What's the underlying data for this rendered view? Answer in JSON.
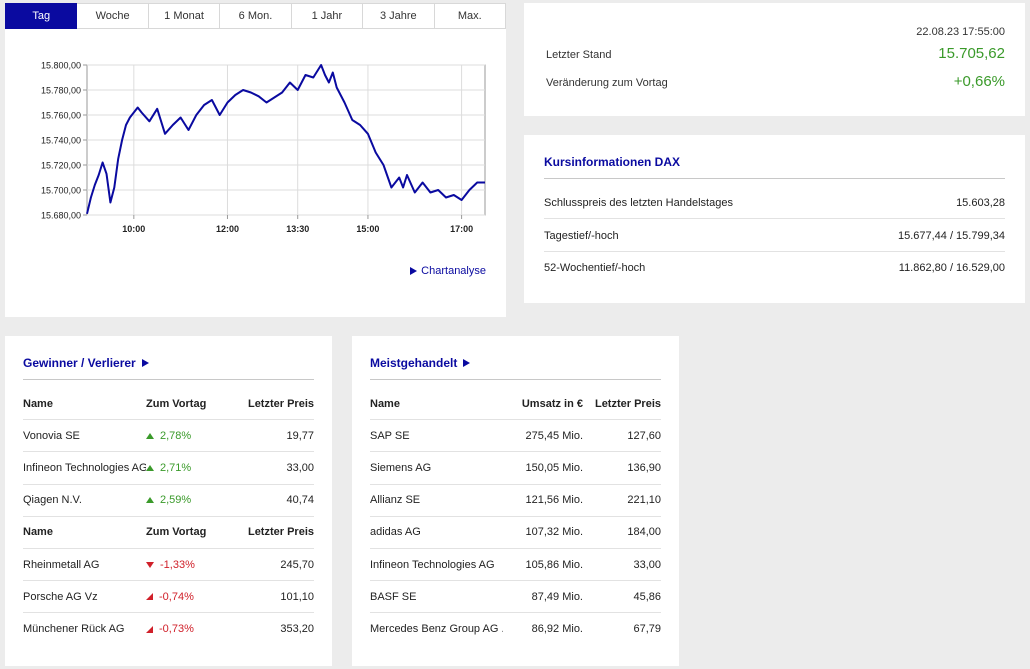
{
  "tabs": [
    "Tag",
    "Woche",
    "1 Monat",
    "6 Mon.",
    "1 Jahr",
    "3 Jahre",
    "Max."
  ],
  "active_tab": 0,
  "chart_link": "Chartanalyse",
  "chart_data": {
    "type": "line",
    "title": "",
    "xlabel": "",
    "ylabel": "",
    "x_ticks": [
      "10:00",
      "12:00",
      "13:30",
      "15:00",
      "17:00"
    ],
    "y_ticks": [
      "15.680,00",
      "15.700,00",
      "15.720,00",
      "15.740,00",
      "15.760,00",
      "15.780,00",
      "15.800,00"
    ],
    "ylim": [
      15680,
      15800
    ],
    "xlim": [
      "09:00",
      "17:30"
    ],
    "grid": true,
    "color": "#0a0aa0",
    "series": [
      {
        "x": [
          "09:00",
          "09:05",
          "09:10",
          "09:15",
          "09:20",
          "09:25",
          "09:30",
          "09:35",
          "09:40",
          "09:45",
          "09:50",
          "09:55",
          "10:00",
          "10:05",
          "10:10",
          "10:20",
          "10:30",
          "10:40",
          "10:50",
          "11:00",
          "11:10",
          "11:20",
          "11:30",
          "11:40",
          "11:50",
          "12:00",
          "12:10",
          "12:20",
          "12:30",
          "12:40",
          "12:50",
          "13:00",
          "13:10",
          "13:20",
          "13:30",
          "13:40",
          "13:50",
          "14:00",
          "14:05",
          "14:10",
          "14:15",
          "14:20",
          "14:30",
          "14:40",
          "14:50",
          "15:00",
          "15:10",
          "15:20",
          "15:30",
          "15:40",
          "15:45",
          "15:50",
          "16:00",
          "16:10",
          "16:20",
          "16:30",
          "16:40",
          "16:50",
          "17:00",
          "17:10",
          "17:20",
          "17:30"
        ],
        "y": [
          15681,
          15694,
          15704,
          15712,
          15722,
          15713,
          15690,
          15702,
          15725,
          15740,
          15752,
          15758,
          15762,
          15766,
          15762,
          15755,
          15765,
          15745,
          15752,
          15758,
          15748,
          15760,
          15768,
          15772,
          15760,
          15770,
          15776,
          15780,
          15778,
          15775,
          15770,
          15774,
          15778,
          15786,
          15780,
          15792,
          15790,
          15800,
          15792,
          15786,
          15794,
          15782,
          15770,
          15756,
          15752,
          15745,
          15730,
          15720,
          15702,
          15710,
          15702,
          15712,
          15698,
          15706,
          15698,
          15700,
          15694,
          15696,
          15692,
          15700,
          15706,
          15706
        ]
      }
    ]
  },
  "quote": {
    "timestamp": "22.08.23 17:55:00",
    "last_label": "Letzter Stand",
    "last_value": "15.705,62",
    "change_label": "Veränderung zum Vortag",
    "change_value": "+0,66%",
    "positive_color": "#3a9a2a"
  },
  "info": {
    "title": "Kursinformationen DAX",
    "rows": [
      {
        "label": "Schlusspreis des letzten Handelstages",
        "value": "15.603,28"
      },
      {
        "label": "Tagestief/-hoch",
        "value": "15.677,44 / 15.799,34"
      },
      {
        "label": "52-Wochentief/-hoch",
        "value": "11.862,80 / 16.529,00"
      }
    ]
  },
  "gainers": {
    "title": "Gewinner / Verlierer",
    "headers": [
      "Name",
      "Zum Vortag",
      "Letzter Preis"
    ],
    "winners": [
      {
        "name": "Vonovia SE",
        "change": "2,78%",
        "price": "19,77"
      },
      {
        "name": "Infineon Technologies AG",
        "change": "2,71%",
        "price": "33,00"
      },
      {
        "name": "Qiagen N.V.",
        "change": "2,59%",
        "price": "40,74"
      }
    ],
    "losers": [
      {
        "name": "Rheinmetall AG",
        "change": "-1,33%",
        "price": "245,70",
        "icon": "down"
      },
      {
        "name": "Porsche AG Vz",
        "change": "-0,74%",
        "price": "101,10",
        "icon": "diag"
      },
      {
        "name": "Münchener Rück AG",
        "change": "-0,73%",
        "price": "353,20",
        "icon": "diag"
      }
    ]
  },
  "traded": {
    "title": "Meistgehandelt",
    "headers": [
      "Name",
      "Umsatz in €",
      "Letzter Preis"
    ],
    "rows": [
      {
        "name": "SAP SE",
        "volume": "275,45 Mio.",
        "price": "127,60"
      },
      {
        "name": "Siemens AG",
        "volume": "150,05 Mio.",
        "price": "136,90"
      },
      {
        "name": "Allianz SE",
        "volume": "121,56 Mio.",
        "price": "221,10"
      },
      {
        "name": "adidas AG",
        "volume": "107,32 Mio.",
        "price": "184,00"
      },
      {
        "name": "Infineon Technologies AG",
        "volume": "105,86 Mio.",
        "price": "33,00"
      },
      {
        "name": "BASF SE",
        "volume": "87,49 Mio.",
        "price": "45,86"
      },
      {
        "name": "Mercedes Benz Group AG ...",
        "volume": "86,92 Mio.",
        "price": "67,79"
      }
    ]
  }
}
